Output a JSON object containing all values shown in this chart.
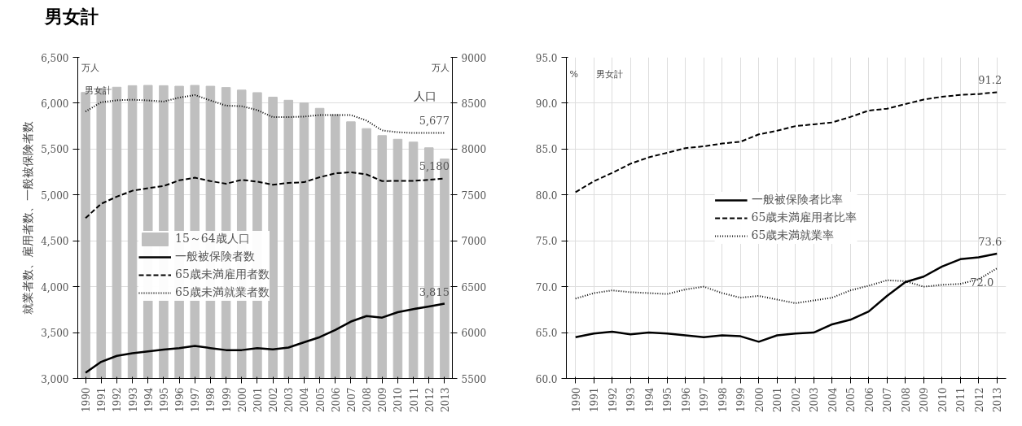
{
  "chart_data": [
    {
      "type": "line",
      "title": "男女計",
      "categories": [
        "1990",
        "1991",
        "1992",
        "1993",
        "1994",
        "1995",
        "1996",
        "1997",
        "1998",
        "1999",
        "2000",
        "2001",
        "2002",
        "2003",
        "2004",
        "2005",
        "2006",
        "2007",
        "2008",
        "2009",
        "2010",
        "2011",
        "2012",
        "2013"
      ],
      "ylabel": "就業者数、雇用者数、一般被保険者数",
      "y2label": "人口",
      "ylim": [
        3000,
        6500
      ],
      "yticks": [
        {
          "value": 3000,
          "label": "3,000"
        },
        {
          "value": 3500,
          "label": "3,500"
        },
        {
          "value": 4000,
          "label": "4,000"
        },
        {
          "value": 4500,
          "label": "4,500"
        },
        {
          "value": 5000,
          "label": "5,000"
        },
        {
          "value": 5500,
          "label": "5,500"
        },
        {
          "value": 6000,
          "label": "6,000"
        },
        {
          "value": 6500,
          "label": "6,500"
        }
      ],
      "y2lim": [
        5500,
        9000
      ],
      "y2ticks": [
        5500,
        6000,
        6500,
        7000,
        7500,
        8000,
        8500,
        9000
      ],
      "grid": "y",
      "legend": "center",
      "series": [
        {
          "name": "15～64歳人口",
          "type": "bar",
          "axis": "y2",
          "color": "#bfbfbf",
          "values": [
            8617,
            8660,
            8674,
            8691,
            8694,
            8691,
            8685,
            8694,
            8685,
            8671,
            8643,
            8615,
            8566,
            8532,
            8504,
            8444,
            8376,
            8297,
            8223,
            8147,
            8107,
            8076,
            8014,
            7892
          ]
        },
        {
          "name": "一般被保険者数",
          "color": "#000000",
          "line_style": "solid",
          "values": [
            3062,
            3181,
            3246,
            3275,
            3294,
            3314,
            3331,
            3354,
            3331,
            3309,
            3309,
            3331,
            3317,
            3337,
            3394,
            3450,
            3529,
            3620,
            3680,
            3663,
            3722,
            3756,
            3785,
            3815
          ]
        },
        {
          "name": "65歳未満雇用者数",
          "color": "#000000",
          "line_style": "dashed",
          "values": [
            4748,
            4904,
            4981,
            5046,
            5074,
            5097,
            5159,
            5188,
            5151,
            5122,
            5165,
            5145,
            5111,
            5131,
            5139,
            5193,
            5236,
            5247,
            5224,
            5151,
            5154,
            5154,
            5165,
            5180
          ]
        },
        {
          "name": "65歳未満就業者数",
          "color": "#000000",
          "line_style": "dotted",
          "values": [
            5910,
            6010,
            6032,
            6038,
            6030,
            6018,
            6061,
            6089,
            6030,
            5973,
            5967,
            5925,
            5848,
            5848,
            5854,
            5871,
            5871,
            5871,
            5811,
            5703,
            5684,
            5675,
            5675,
            5677
          ]
        }
      ],
      "annotations": [
        "男女計",
        "万人",
        "万人",
        {
          "text": "5,677",
          "x": "2013",
          "y": 5677
        },
        {
          "text": "5,180",
          "x": "2013",
          "y": 5180
        },
        {
          "text": "3,815",
          "x": "2013",
          "y": 3815
        }
      ]
    },
    {
      "type": "line",
      "categories": [
        "1990",
        "1991",
        "1992",
        "1993",
        "1994",
        "1995",
        "1996",
        "1997",
        "1998",
        "1999",
        "2000",
        "2001",
        "2002",
        "2003",
        "2004",
        "2005",
        "2006",
        "2007",
        "2008",
        "2009",
        "2010",
        "2011",
        "2012",
        "2013"
      ],
      "ylim": [
        60,
        95
      ],
      "yticks": [
        {
          "value": 60,
          "label": "60.0"
        },
        {
          "value": 65,
          "label": "65.0"
        },
        {
          "value": 70,
          "label": "70.0"
        },
        {
          "value": 75,
          "label": "75.0"
        },
        {
          "value": 80,
          "label": "80.0"
        },
        {
          "value": 85,
          "label": "85.0"
        },
        {
          "value": 90,
          "label": "90.0"
        },
        {
          "value": 95,
          "label": "95.0"
        }
      ],
      "grid": true,
      "legend": "center",
      "series": [
        {
          "name": "一般被保険者比率",
          "color": "#000000",
          "line_style": "solid",
          "values": [
            64.5,
            64.9,
            65.1,
            64.8,
            65.0,
            64.9,
            64.7,
            64.5,
            64.7,
            64.6,
            64.0,
            64.7,
            64.9,
            65.0,
            65.9,
            66.4,
            67.3,
            69.0,
            70.5,
            71.1,
            72.2,
            73.0,
            73.2,
            73.6
          ]
        },
        {
          "name": "65歳未満雇用者比率",
          "color": "#000000",
          "line_style": "dashed",
          "values": [
            80.3,
            81.5,
            82.4,
            83.4,
            84.1,
            84.6,
            85.1,
            85.3,
            85.6,
            85.8,
            86.6,
            87.0,
            87.5,
            87.7,
            87.9,
            88.5,
            89.2,
            89.4,
            89.9,
            90.4,
            90.7,
            90.9,
            91.0,
            91.2
          ]
        },
        {
          "name": "65歳未満就業率",
          "color": "#000000",
          "line_style": "dotted",
          "values": [
            68.7,
            69.3,
            69.6,
            69.4,
            69.3,
            69.2,
            69.7,
            70.0,
            69.3,
            68.8,
            69.0,
            68.6,
            68.2,
            68.5,
            68.8,
            69.6,
            70.1,
            70.7,
            70.6,
            70.0,
            70.2,
            70.3,
            70.8,
            72.0
          ]
        }
      ],
      "annotations": [
        "男女計",
        "%",
        {
          "text": "91.2",
          "x": "2013",
          "y": 91.2
        },
        {
          "text": "73.6",
          "x": "2013",
          "y": 73.6
        },
        {
          "text": "72.0",
          "x": "2013",
          "y": 72.0
        }
      ]
    }
  ]
}
